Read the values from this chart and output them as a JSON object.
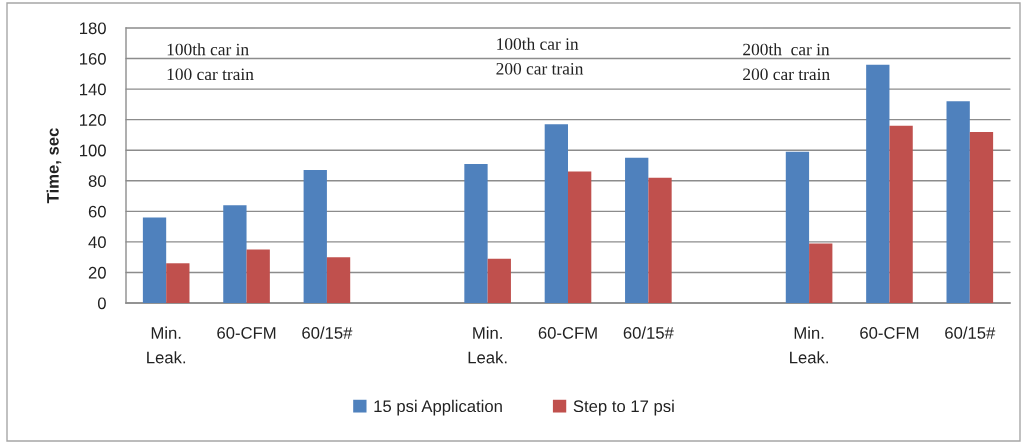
{
  "chart_data": {
    "type": "bar",
    "ylabel": "Time, sec",
    "categories": [
      "Min.\nLeak.",
      "60-CFM",
      "60/15#",
      null,
      "Min.\nLeak.",
      "60-CFM",
      "60/15#",
      null,
      "Min.\nLeak.",
      "60-CFM",
      "60/15#"
    ],
    "series": [
      {
        "name": "15 psi Application",
        "color": "#4f81bd",
        "values": [
          56,
          64,
          87,
          null,
          91,
          117,
          95,
          null,
          99,
          156,
          132
        ]
      },
      {
        "name": "Step to 17 psi",
        "color": "#c0504d",
        "values": [
          26,
          35,
          30,
          null,
          29,
          86,
          82,
          null,
          39,
          116,
          112
        ]
      }
    ],
    "annotations": [
      "100th car in\n100 car train",
      "100th car in\n200 car train",
      "200th  car in\n200 car train"
    ],
    "ylim": [
      0,
      180
    ],
    "yticks": [
      0,
      20,
      40,
      60,
      80,
      100,
      120,
      140,
      160,
      180
    ],
    "grid": "y",
    "legend": "bottom"
  }
}
